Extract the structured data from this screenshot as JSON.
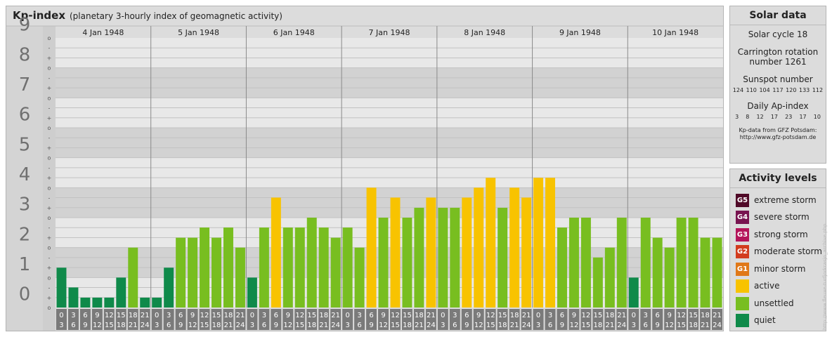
{
  "header": {
    "title": "Kp-index",
    "subtitle": "(planetary 3-hourly index of geomagnetic activity)"
  },
  "chart_data": {
    "type": "bar",
    "title": "Kp-index",
    "subtitle": "(planetary 3-hourly index of geomagnetic activity)",
    "ylim": [
      0,
      9
    ],
    "y_ticks": [
      "0",
      "1",
      "2",
      "3",
      "4",
      "5",
      "6",
      "7",
      "8",
      "9"
    ],
    "y_minor_ticks": [
      "o",
      "+",
      "-"
    ],
    "days": [
      "4 Jan 1948",
      "5 Jan 1948",
      "6 Jan 1948",
      "7 Jan 1948",
      "8 Jan 1948",
      "9 Jan 1948",
      "10 Jan 1948"
    ],
    "interval_labels": [
      [
        "0",
        "3"
      ],
      [
        "3",
        "6"
      ],
      [
        "6",
        "9"
      ],
      [
        "9",
        "12"
      ],
      [
        "12",
        "15"
      ],
      [
        "15",
        "18"
      ],
      [
        "18",
        "21"
      ],
      [
        "21",
        "24"
      ]
    ],
    "grid": true,
    "values": [
      [
        1.33,
        0.67,
        0.33,
        0.33,
        0.33,
        1.0,
        2.0,
        0.33
      ],
      [
        0.33,
        1.33,
        2.33,
        2.33,
        2.67,
        2.33,
        2.67,
        2.0
      ],
      [
        1.0,
        2.67,
        3.67,
        2.67,
        2.67,
        3.0,
        2.67,
        2.33
      ],
      [
        2.67,
        2.0,
        4.0,
        3.0,
        3.67,
        3.0,
        3.33,
        3.67
      ],
      [
        3.33,
        3.33,
        3.67,
        4.0,
        4.33,
        3.33,
        4.0,
        3.67
      ],
      [
        4.33,
        4.33,
        2.67,
        3.0,
        3.0,
        1.67,
        2.0,
        3.0
      ],
      [
        1.0,
        3.0,
        2.33,
        2.0,
        3.0,
        3.0,
        2.33,
        2.33
      ]
    ],
    "colors": {
      "quiet": "#0f8a4a",
      "unsettled": "#78be20",
      "active": "#f8c300",
      "minor_storm": "#e07818",
      "moderate_storm": "#d23c1e",
      "strong_storm": "#b4145a",
      "severe_storm": "#781450",
      "extreme_storm": "#500a28"
    }
  },
  "solar": {
    "title": "Solar data",
    "cycle": "Solar cycle 18",
    "carrington_line1": "Carrington rotation",
    "carrington_line2": "number 1261",
    "sunspot_label": "Sunspot number",
    "sunspot_values": [
      "124",
      "110",
      "104",
      "117",
      "120",
      "133",
      "112"
    ],
    "ap_label": "Daily Ap-index",
    "ap_values": [
      "3",
      "8",
      "12",
      "17",
      "23",
      "17",
      "10"
    ],
    "source_line1": "Kp-data from GFZ Potsdam:",
    "source_line2": "http://www.gfz-potsdam.de"
  },
  "levels": {
    "title": "Activity levels",
    "items": [
      {
        "code": "G5",
        "label": "extreme storm",
        "color": "#500a28"
      },
      {
        "code": "G4",
        "label": "severe storm",
        "color": "#781450"
      },
      {
        "code": "G3",
        "label": "strong storm",
        "color": "#b4145a"
      },
      {
        "code": "G2",
        "label": "moderate storm",
        "color": "#d23c1e"
      },
      {
        "code": "G1",
        "label": "minor storm",
        "color": "#e07818"
      },
      {
        "code": "",
        "label": "active",
        "color": "#f8c300"
      },
      {
        "code": "",
        "label": "unsettled",
        "color": "#78be20"
      },
      {
        "code": "",
        "label": "quiet",
        "color": "#0f8a4a"
      }
    ]
  },
  "watermark": "http://www.fleuxe-turfjorkrasjo_archive.php"
}
